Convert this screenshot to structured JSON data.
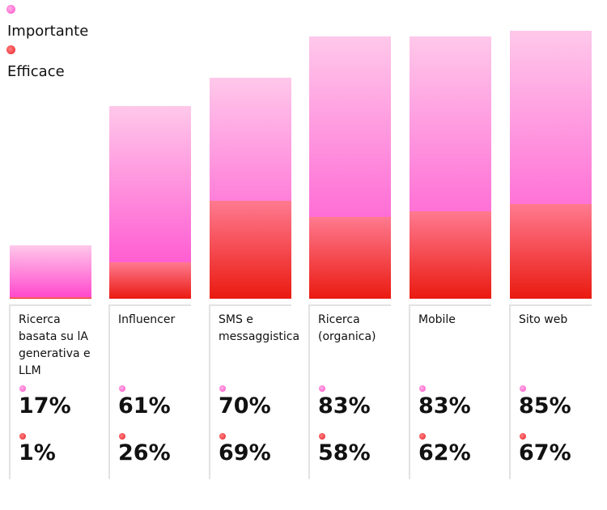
{
  "chart_data": {
    "type": "bar",
    "legend_position": "top-left",
    "grid": false,
    "categories": [
      "Ricerca basata su lA generativa e LLM",
      "Influencer",
      "SMS e messaggistica",
      "Ricerca (organica)",
      "Mobile",
      "Sito web"
    ],
    "series": [
      {
        "name": "Importante",
        "values": [
          17,
          61,
          70,
          83,
          83,
          85
        ],
        "labels": [
          "17%",
          "61%",
          "70%",
          "83%",
          "83%",
          "85%"
        ],
        "color": "#ff45cc"
      },
      {
        "name": "Efficace",
        "values": [
          1,
          26,
          69,
          58,
          62,
          67
        ],
        "labels": [
          "1%",
          "26%",
          "69%",
          "58%",
          "62%",
          "67%"
        ],
        "color": "#ea1a10"
      }
    ]
  }
}
